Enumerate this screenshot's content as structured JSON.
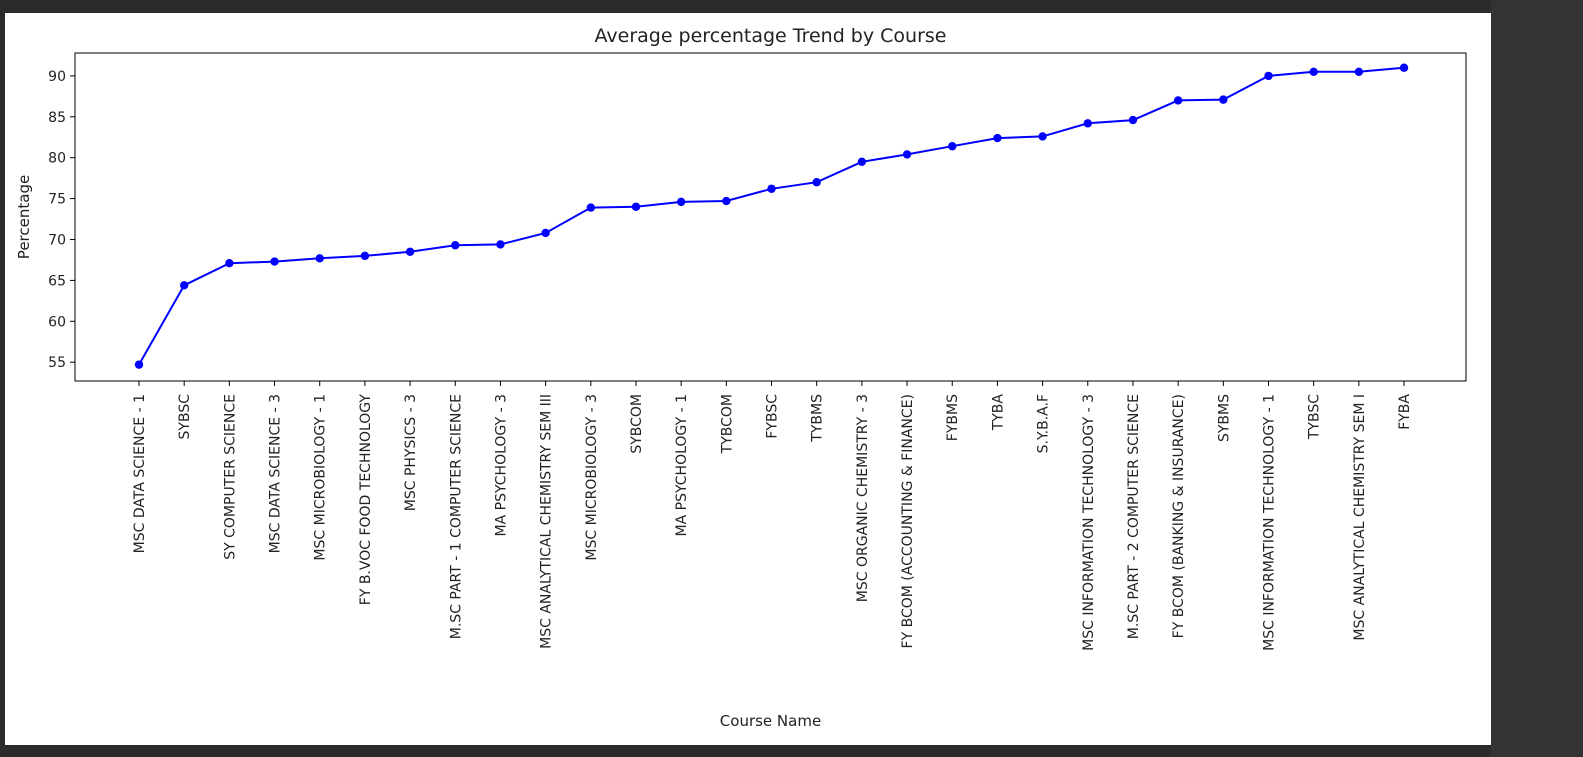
{
  "colors": {
    "series": "#0000ff",
    "background": "#2b2b2b",
    "figure": "#ffffff",
    "axes": "#000000"
  },
  "chart_data": {
    "type": "line",
    "title": "Average percentage Trend by Course",
    "xlabel": "Course Name",
    "ylabel": "Percentage",
    "ylim": [
      52.7,
      92.8
    ],
    "yticks": [
      55,
      60,
      65,
      70,
      75,
      80,
      85,
      90
    ],
    "grid": false,
    "marker": "circle",
    "categories": [
      "MSC DATA SCIENCE - 1",
      "SYBSC",
      "SY COMPUTER SCIENCE",
      "MSC DATA SCIENCE - 3",
      "MSC MICROBIOLOGY - 1",
      "FY B.VOC FOOD TECHNOLOGY",
      "MSC PHYSICS - 3",
      "M.SC PART - 1 COMPUTER SCIENCE",
      "MA PSYCHOLOGY - 3",
      "MSC ANALYTICAL CHEMISTRY SEM III",
      "MSC MICROBIOLOGY - 3",
      "SYBCOM",
      "MA PSYCHOLOGY - 1",
      "TYBCOM",
      "FYBSC",
      "TYBMS",
      "MSC ORGANIC CHEMISTRY - 3",
      "FY BCOM (ACCOUNTING & FINANCE)",
      "FYBMS",
      "TYBA",
      "S.Y.B.A.F",
      "MSC INFORMATION TECHNOLOGY - 3",
      "M.SC PART - 2 COMPUTER SCIENCE",
      "FY BCOM (BANKING & INSURANCE)",
      "SYBMS",
      "MSC INFORMATION TECHNOLOGY - 1",
      "TYBSC",
      "MSC ANALYTICAL CHEMISTRY SEM I",
      "FYBA"
    ],
    "values": [
      54.7,
      64.4,
      67.1,
      67.3,
      67.7,
      68.0,
      68.5,
      69.3,
      69.4,
      70.8,
      73.9,
      74.0,
      74.6,
      74.7,
      76.2,
      77.0,
      79.5,
      80.4,
      81.4,
      82.4,
      82.6,
      84.2,
      84.6,
      87.0,
      87.1,
      90.0,
      90.5,
      90.5,
      91.0
    ]
  }
}
